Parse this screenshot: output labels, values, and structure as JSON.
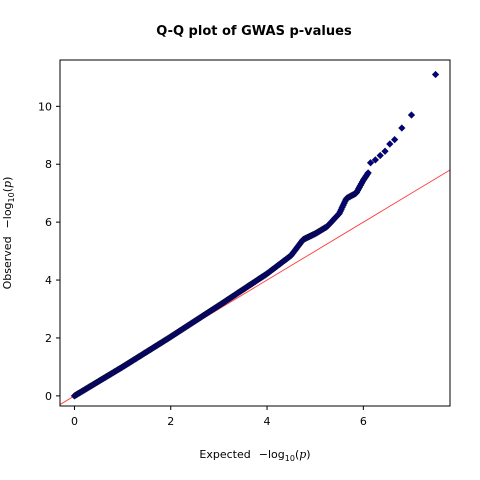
{
  "chart_data": {
    "type": "scatter",
    "title": "Q-Q plot of GWAS p-values",
    "xlabel": {
      "prefix": "Expected",
      "minus_log": "−log",
      "sub": "10",
      "open": "(",
      "var": "p",
      "close": ")"
    },
    "ylabel": {
      "prefix": "Observed",
      "minus_log": "−log",
      "sub": "10",
      "open": "(",
      "var": "p",
      "close": ")"
    },
    "xlim": [
      -0.3,
      7.8
    ],
    "ylim": [
      -0.35,
      11.6
    ],
    "xticks": [
      0,
      2,
      4,
      6
    ],
    "yticks": [
      0,
      2,
      4,
      6,
      8,
      10
    ],
    "grid": false,
    "legend": "none",
    "reference_line": {
      "type": "y=x",
      "color": "#ff3b3b"
    },
    "marker": {
      "shape": "diamond",
      "fill": "#00008b",
      "edge": "#0b0b40"
    },
    "points": {
      "curve_knots": [
        [
          0.0,
          0.0
        ],
        [
          1.0,
          1.0
        ],
        [
          2.0,
          2.04
        ],
        [
          3.0,
          3.12
        ],
        [
          4.0,
          4.22
        ],
        [
          4.5,
          4.85
        ],
        [
          4.75,
          5.4
        ],
        [
          5.0,
          5.6
        ],
        [
          5.25,
          5.85
        ],
        [
          5.5,
          6.3
        ],
        [
          5.65,
          6.82
        ],
        [
          5.85,
          7.0
        ],
        [
          6.0,
          7.45
        ],
        [
          6.1,
          7.7
        ]
      ],
      "outliers": [
        [
          6.15,
          8.05
        ],
        [
          6.25,
          8.15
        ],
        [
          6.35,
          8.3
        ],
        [
          6.45,
          8.45
        ],
        [
          6.55,
          8.7
        ],
        [
          6.65,
          8.85
        ],
        [
          6.8,
          9.25
        ],
        [
          7.0,
          9.7
        ],
        [
          7.5,
          11.1
        ]
      ]
    }
  }
}
